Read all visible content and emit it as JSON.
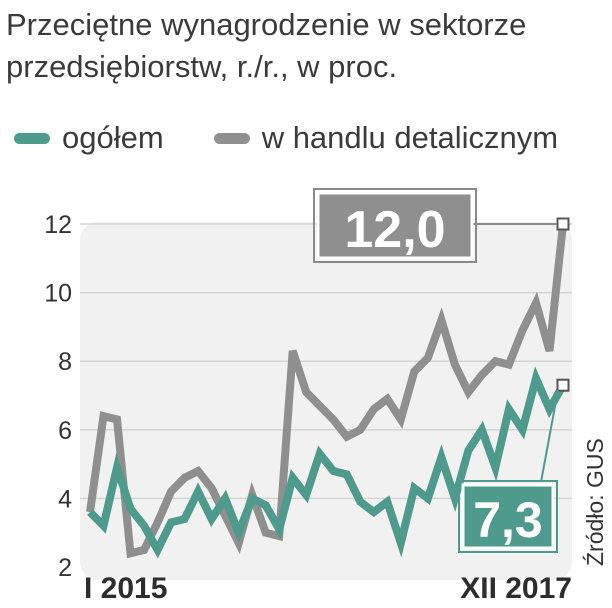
{
  "chart_data": {
    "type": "line",
    "title": "Przeciętne wynagrodzenie w sektorze",
    "subtitle": "przedsiębiorstw, r./r., w proc.",
    "x_labels": [
      "I 2015",
      "XII 2017"
    ],
    "xlabel": "",
    "ylabel": "",
    "ylim": [
      2,
      12.5
    ],
    "yticks": [
      2,
      4,
      6,
      8,
      10,
      12
    ],
    "grid": true,
    "legend_position": "top-left",
    "source": "Źródło: GUS",
    "series": [
      {
        "name": "ogółem",
        "color": "#4e9a8c",
        "end_label": "7,3",
        "values": [
          3.6,
          3.2,
          4.9,
          3.7,
          3.2,
          2.5,
          3.3,
          3.4,
          4.2,
          3.4,
          4.0,
          3.0,
          4.0,
          3.8,
          3.1,
          4.6,
          4.1,
          5.3,
          4.8,
          4.7,
          3.9,
          3.6,
          3.9,
          2.7,
          4.3,
          4.0,
          5.2,
          4.0,
          5.4,
          6.0,
          4.9,
          6.6,
          6.0,
          7.5,
          6.6,
          7.3
        ]
      },
      {
        "name": "w handlu detalicznym",
        "color": "#8f8f8f",
        "end_label": "12,0",
        "values": [
          3.6,
          6.4,
          6.3,
          2.4,
          2.5,
          3.3,
          4.2,
          4.6,
          4.8,
          4.3,
          3.5,
          2.7,
          4.1,
          3.0,
          2.9,
          8.3,
          7.1,
          6.7,
          6.3,
          5.8,
          6.0,
          6.6,
          6.9,
          6.3,
          7.7,
          8.1,
          9.2,
          7.9,
          7.1,
          7.6,
          8.0,
          7.9,
          8.9,
          9.7,
          8.3,
          12.0
        ]
      }
    ]
  }
}
